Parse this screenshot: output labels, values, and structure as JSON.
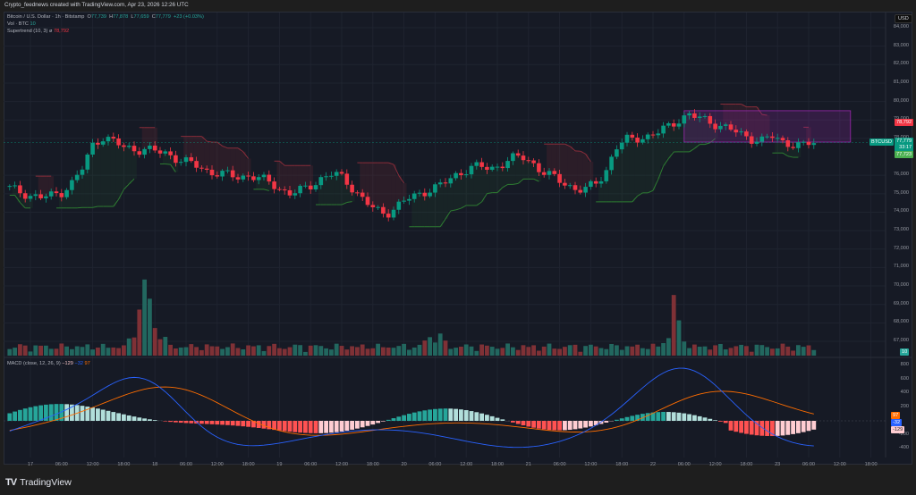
{
  "header": {
    "title": "Crypto_feednews created with TradingView.com, Apr 23, 2026 12:26 UTC"
  },
  "legend": {
    "symbol": "Bitcoin / U.S. Dollar · 1h · Bitstamp",
    "o_label": "O",
    "o": "77,739",
    "h_label": "H",
    "h": "77,878",
    "l_label": "L",
    "l": "77,659",
    "c_label": "C",
    "c": "77,779",
    "change": "+23 (+0.03%)",
    "vol_label": "Vol · BTC",
    "vol": "10",
    "supertrend_label": "Supertrend (10, 3)",
    "supertrend_icon": "eye-slash-icon",
    "supertrend": "78,792",
    "macd_label": "MACD (close, 12, 26, 9)",
    "macd_hist": "−129",
    "macd_line": "−32",
    "macd_signal": "97"
  },
  "price_axis": {
    "currency": "USD",
    "labels": [
      "84,000",
      "83,000",
      "82,000",
      "81,000",
      "80,000",
      "79,000",
      "78,000",
      "76,000",
      "75,000",
      "74,000",
      "73,000",
      "72,000",
      "71,000",
      "70,000",
      "69,000",
      "68,000",
      "67,000"
    ],
    "tags": {
      "supertrend": "78,792",
      "symbol": "BTCUSD",
      "last_price": "77,779",
      "countdown": "33:17",
      "low_tag": "77,723",
      "volume": "10"
    }
  },
  "macd_axis": {
    "labels": [
      "800",
      "600",
      "400",
      "200",
      "-200",
      "-400"
    ],
    "tags": {
      "signal": "97",
      "macd": "-32",
      "hist": "-129"
    }
  },
  "time_axis": {
    "labels": [
      "17",
      "06:00",
      "12:00",
      "18:00",
      "18",
      "06:00",
      "12:00",
      "18:00",
      "19",
      "06:00",
      "12:00",
      "18:00",
      "20",
      "06:00",
      "12:00",
      "18:00",
      "21",
      "06:00",
      "12:00",
      "18:00",
      "22",
      "06:00",
      "12:00",
      "18:00",
      "23",
      "06:00",
      "12:00",
      "18:00"
    ]
  },
  "footer": {
    "brand": "TradingView",
    "logo_mark": "TV"
  },
  "colors": {
    "up": "#089981",
    "down": "#f23645",
    "bg": "#161a25",
    "vol_up": "#22675f",
    "vol_down": "#7f3136",
    "macd_line": "#2962ff",
    "signal_line": "#ff6d00",
    "hist_up_strong": "#26a69a",
    "hist_up_weak": "#b2dfdb",
    "hist_down_strong": "#ff5252",
    "hist_down_weak": "#ffcdd2",
    "supertrend_up": "#2e7d32",
    "supertrend_down": "#8b2d3a",
    "rect": "#9c27b0"
  },
  "chart_data": [
    {
      "type": "candlestick",
      "title": "Bitcoin / U.S. Dollar · 1h · Bitstamp",
      "xlabel": "",
      "ylabel": "USD",
      "ylim": [
        66500,
        84500
      ],
      "x_ticks": [
        "17",
        "06:00",
        "12:00",
        "18:00",
        "18",
        "06:00",
        "12:00",
        "18:00",
        "19",
        "06:00",
        "12:00",
        "18:00",
        "20",
        "06:00",
        "12:00",
        "18:00",
        "21",
        "06:00",
        "12:00",
        "18:00",
        "22",
        "06:00",
        "12:00",
        "18:00",
        "23",
        "06:00",
        "12:00"
      ],
      "approx_close_path": [
        75300,
        75100,
        74900,
        74800,
        74900,
        75100,
        75600,
        76400,
        77700,
        78100,
        77800,
        77500,
        77400,
        77400,
        77300,
        77200,
        76900,
        76700,
        76500,
        76200,
        76100,
        76000,
        75900,
        76000,
        75800,
        75600,
        75200,
        75000,
        75200,
        75500,
        75900,
        76100,
        75800,
        75200,
        74600,
        74100,
        73900,
        74300,
        74700,
        74900,
        75200,
        75400,
        75700,
        76100,
        76400,
        76500,
        76300,
        76600,
        76900,
        77000,
        76700,
        76200,
        75900,
        75600,
        75300,
        75200,
        75500,
        76100,
        77500,
        77900,
        78000,
        78100,
        78300,
        78600,
        79000,
        79300,
        79100,
        78900,
        78700,
        78500,
        78200,
        78000,
        77900,
        78100,
        77800,
        77700,
        77600,
        77779
      ],
      "last": {
        "open": 77739,
        "high": 77878,
        "low": 77659,
        "close": 77779,
        "change": 23,
        "change_pct": 0.03
      },
      "annotations": [
        "Purple rectangle ~77,800–79,500 from Apr 22 06:00 to Apr 23 12:00"
      ]
    },
    {
      "type": "line",
      "title": "Supertrend (10, 3)",
      "last_value": 78792,
      "segments": [
        {
          "trend": "up",
          "from": "17 00:00",
          "to": "18 09:00",
          "levels": [
            74500,
            75600,
            76500
          ]
        },
        {
          "trend": "down",
          "from": "18 10:00",
          "to": "19 11:00",
          "levels": [
            77000,
            76500,
            76000
          ]
        },
        {
          "trend": "up",
          "from": "19 11:00",
          "to": "19 12:00",
          "levels": [
            75400
          ]
        },
        {
          "trend": "down",
          "from": "19 13:00",
          "to": "20 02:00",
          "levels": [
            76000,
            75300
          ]
        },
        {
          "trend": "up",
          "from": "20 12:00",
          "to": "21 21:00",
          "levels": [
            74200,
            74900,
            75300
          ]
        },
        {
          "trend": "down",
          "from": "21 21:00",
          "to": "22 02:00",
          "levels": [
            76700
          ]
        },
        {
          "trend": "up",
          "from": "22 02:00",
          "to": "23 06:00",
          "levels": [
            75100,
            77200,
            77900
          ]
        },
        {
          "trend": "down",
          "from": "23 06:00",
          "to": "23 12:00",
          "levels": [
            78792
          ]
        }
      ]
    },
    {
      "type": "bar",
      "title": "Vol · BTC",
      "last_value": 10,
      "notes": "Largest spikes near Apr 17 ~15:00 and Apr 22 ~12:00"
    },
    {
      "type": "line",
      "title": "MACD (close, 12, 26, 9)",
      "ylim": [
        -500,
        850
      ],
      "series": [
        {
          "name": "MACD",
          "last": -32
        },
        {
          "name": "Signal",
          "last": 97
        },
        {
          "name": "Histogram",
          "last": -129
        }
      ],
      "y_ticks": [
        800,
        600,
        400,
        200,
        -200,
        -400
      ]
    }
  ]
}
